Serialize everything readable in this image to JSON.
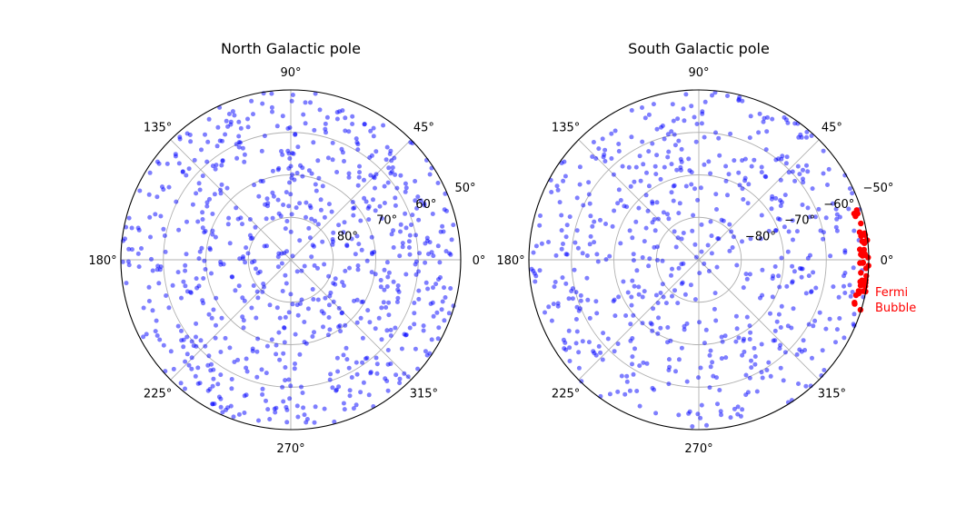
{
  "colors": {
    "background": "#ffffff",
    "grid": "#b0b0b0",
    "frame": "#000000",
    "points": "#0000ff",
    "points_alpha": 0.5,
    "highlight": "#ff0000"
  },
  "chart_data": [
    {
      "type": "scatter",
      "projection": "polar",
      "title": "North Galactic pole",
      "angle_unit": "degrees (galactic longitude)",
      "angle_ticks": [
        "0°",
        "45°",
        "90°",
        "135°",
        "180°",
        "225°",
        "270°",
        "315°"
      ],
      "radial_variable": "galactic latitude (degrees)",
      "radial_range": [
        90,
        50
      ],
      "radial_ticks": [
        {
          "value": 80,
          "label": "80°"
        },
        {
          "value": 70,
          "label": "70°"
        },
        {
          "value": 60,
          "label": "60°"
        },
        {
          "value": 50,
          "label": "50°"
        }
      ],
      "grid": true,
      "series": [
        {
          "name": "",
          "color": "#0000ff",
          "alpha": 0.5,
          "count": 760,
          "distribution": "approximately uniform over longitude 0–360° and latitude 50–90°"
        }
      ]
    },
    {
      "type": "scatter",
      "projection": "polar",
      "title": "South Galactic pole",
      "angle_unit": "degrees (galactic longitude)",
      "angle_ticks": [
        "0°",
        "45°",
        "90°",
        "135°",
        "180°",
        "225°",
        "270°",
        "315°"
      ],
      "radial_variable": "galactic latitude (degrees)",
      "radial_range": [
        -90,
        -50
      ],
      "radial_ticks": [
        {
          "value": -80,
          "label": "−80°"
        },
        {
          "value": -70,
          "label": "−70°"
        },
        {
          "value": -60,
          "label": "−60°"
        },
        {
          "value": -50,
          "label": "−50°"
        }
      ],
      "grid": true,
      "series": [
        {
          "name": "",
          "color": "#0000ff",
          "alpha": 0.5,
          "count": 620,
          "distribution": "approximately uniform over longitude 0–360° and latitude −90° to −50°"
        },
        {
          "name": "",
          "color": "#ff0000",
          "alpha": 1.0,
          "count": 45,
          "distribution": "clustered near longitude −18° to 18°, latitude about −52° to −50°"
        }
      ],
      "annotations": [
        {
          "text": "Fermi\nBubble",
          "lines": [
            "Fermi",
            "Bubble"
          ],
          "color": "#ff0000",
          "anchor": "right of 0° at −50°"
        }
      ]
    }
  ]
}
